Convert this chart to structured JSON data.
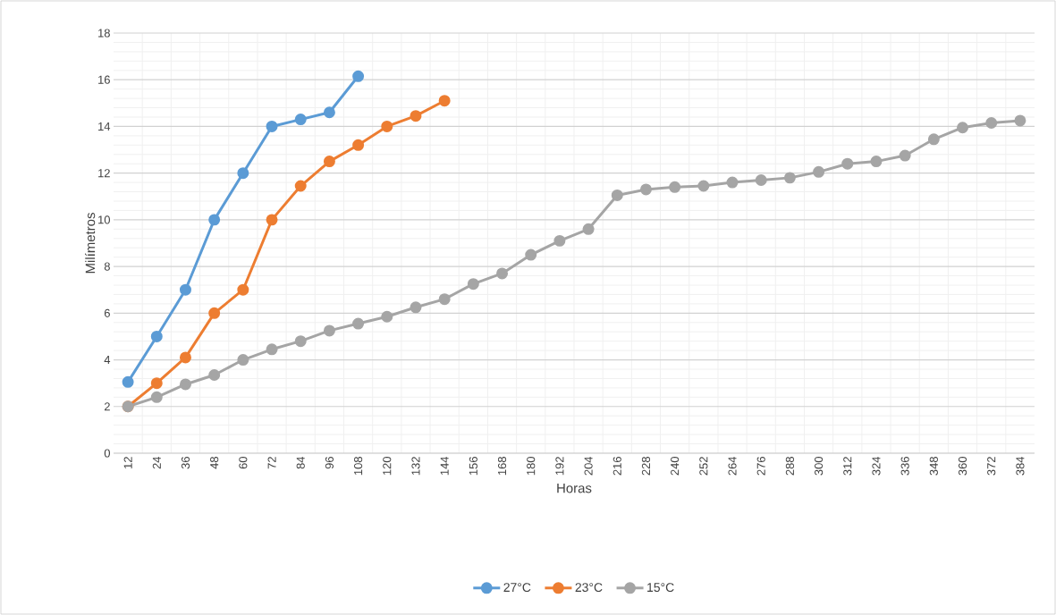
{
  "chart_data": {
    "type": "line",
    "xlabel": "Horas",
    "ylabel": "Milímetros",
    "categories": [
      "12",
      "24",
      "36",
      "48",
      "60",
      "72",
      "84",
      "96",
      "108",
      "120",
      "132",
      "144",
      "156",
      "168",
      "180",
      "192",
      "204",
      "216",
      "228",
      "240",
      "252",
      "264",
      "276",
      "288",
      "300",
      "312",
      "324",
      "336",
      "348",
      "360",
      "372",
      "384"
    ],
    "series": [
      {
        "name": "27°C",
        "color": "#5b9bd5",
        "values": [
          3.05,
          5,
          7,
          10,
          12,
          14,
          14.3,
          14.6,
          16.15,
          null,
          null,
          null,
          null,
          null,
          null,
          null,
          null,
          null,
          null,
          null,
          null,
          null,
          null,
          null,
          null,
          null,
          null,
          null,
          null,
          null,
          null,
          null
        ]
      },
      {
        "name": "23°C",
        "color": "#ed7d31",
        "values": [
          2,
          3,
          4.1,
          6,
          7,
          10,
          11.45,
          12.5,
          13.2,
          14,
          14.45,
          15.1,
          null,
          null,
          null,
          null,
          null,
          null,
          null,
          null,
          null,
          null,
          null,
          null,
          null,
          null,
          null,
          null,
          null,
          null,
          null,
          null
        ]
      },
      {
        "name": "15°C",
        "color": "#a5a5a5",
        "values": [
          2,
          2.4,
          2.95,
          3.35,
          4,
          4.45,
          4.8,
          5.25,
          5.55,
          5.85,
          6.25,
          6.6,
          7.25,
          7.7,
          8.5,
          9.1,
          9.6,
          11.05,
          11.3,
          11.4,
          11.45,
          11.6,
          11.7,
          11.8,
          12.05,
          12.4,
          12.5,
          12.75,
          13.45,
          13.95,
          14.15,
          14.25
        ]
      }
    ],
    "ylim": [
      0,
      18
    ],
    "yticks": [
      0,
      2,
      4,
      6,
      8,
      10,
      12,
      14,
      16,
      18
    ],
    "grid": true,
    "legend": "bottom",
    "marker": "circle",
    "line_style": "solid"
  }
}
